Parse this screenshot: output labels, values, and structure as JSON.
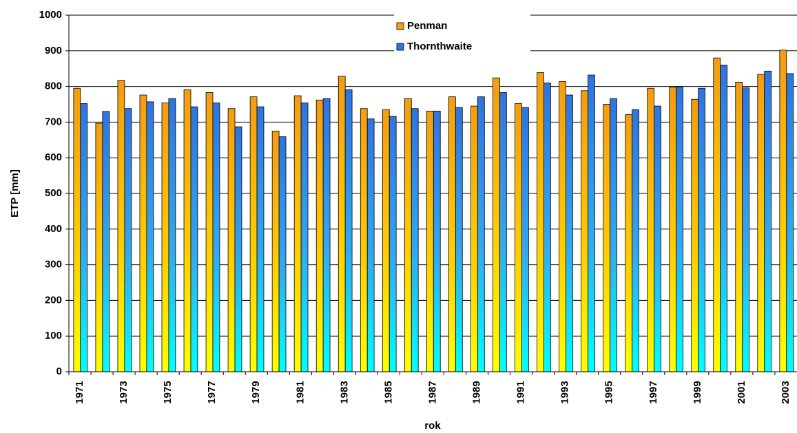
{
  "chart_data": {
    "type": "bar",
    "x_label": "rok",
    "y_label": "ETP [mm]",
    "categories": [
      "1971",
      null,
      "1973",
      null,
      "1975",
      null,
      "1977",
      null,
      "1979",
      null,
      "1981",
      null,
      "1983",
      null,
      "1985",
      null,
      "1987",
      null,
      "1989",
      null,
      "1991",
      null,
      "1993",
      null,
      "1995",
      null,
      "1997",
      null,
      "1999",
      null,
      "2001",
      null,
      "2003"
    ],
    "series": [
      {
        "name": "Penman",
        "color": "#f39c12",
        "values": [
          795,
          697,
          817,
          776,
          754,
          791,
          783,
          738,
          771,
          675,
          774,
          762,
          829,
          738,
          735,
          766,
          731,
          771,
          745,
          824,
          752,
          839,
          814,
          788,
          750,
          721,
          795,
          798,
          764,
          880,
          812,
          834,
          902
        ]
      },
      {
        "name": "Thornthwaite",
        "color": "#2f74e0",
        "values": [
          752,
          730,
          738,
          757,
          766,
          743,
          754,
          687,
          743,
          659,
          754,
          766,
          791,
          709,
          716,
          738,
          731,
          741,
          771,
          783,
          741,
          810,
          776,
          832,
          766,
          735,
          745,
          798,
          795,
          860,
          796,
          843,
          836
        ]
      }
    ],
    "ylim": [
      0,
      1000
    ],
    "yticks": [
      0,
      100,
      200,
      300,
      400,
      500,
      600,
      700,
      800,
      900,
      1000
    ],
    "grid": true,
    "legend": "top"
  }
}
